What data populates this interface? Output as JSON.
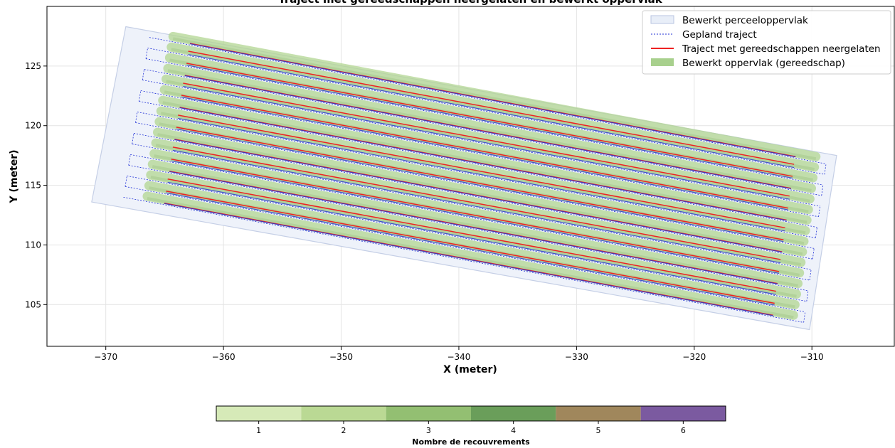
{
  "chart_data": {
    "type": "line",
    "title": "Traject met gereedschappen neergelaten en bewerkt oppervlak",
    "xlabel": "X (meter)",
    "ylabel": "Y (meter)",
    "xlim": [
      -375,
      -303
    ],
    "ylim": [
      101.5,
      130
    ],
    "xticks": [
      -370,
      -360,
      -350,
      -340,
      -330,
      -320,
      -310
    ],
    "yticks": [
      105,
      110,
      115,
      120,
      125
    ],
    "grid": true,
    "legend_position": "top-right",
    "legend": [
      {
        "label": "Bewerkt perceeloppervlak",
        "kind": "patch",
        "color": "#e8eef8"
      },
      {
        "label": "Gepland traject",
        "kind": "dotted-line",
        "color": "#1f2fd6"
      },
      {
        "label": "Traject met gereedschappen neergelaten",
        "kind": "line",
        "color": "#ee2222"
      },
      {
        "label": "Bewerkt oppervlak (gereedschap)",
        "kind": "patch",
        "color": "#a8d08d"
      }
    ],
    "field_polygon": [
      [
        -368.3,
        128.3
      ],
      [
        -307.9,
        117.5
      ],
      [
        -310.2,
        102.9
      ],
      [
        -371.2,
        113.6
      ]
    ],
    "pass_count": 16,
    "pass_start_first": [
      -368.5,
      114.0
    ],
    "pass_start_last": [
      -366.3,
      127.4
    ],
    "pass_end_first": [
      -310.7,
      103.5
    ],
    "pass_end_last": [
      -308.8,
      116.8
    ],
    "colorbar": {
      "label": "Nombre de recouvrements",
      "ticks": [
        "1",
        "2",
        "3",
        "4",
        "5",
        "6"
      ],
      "colors": [
        "#d6eab8",
        "#bad994",
        "#93bf72",
        "#6a9e5a",
        "#a0875c",
        "#7b5aa0"
      ]
    }
  }
}
